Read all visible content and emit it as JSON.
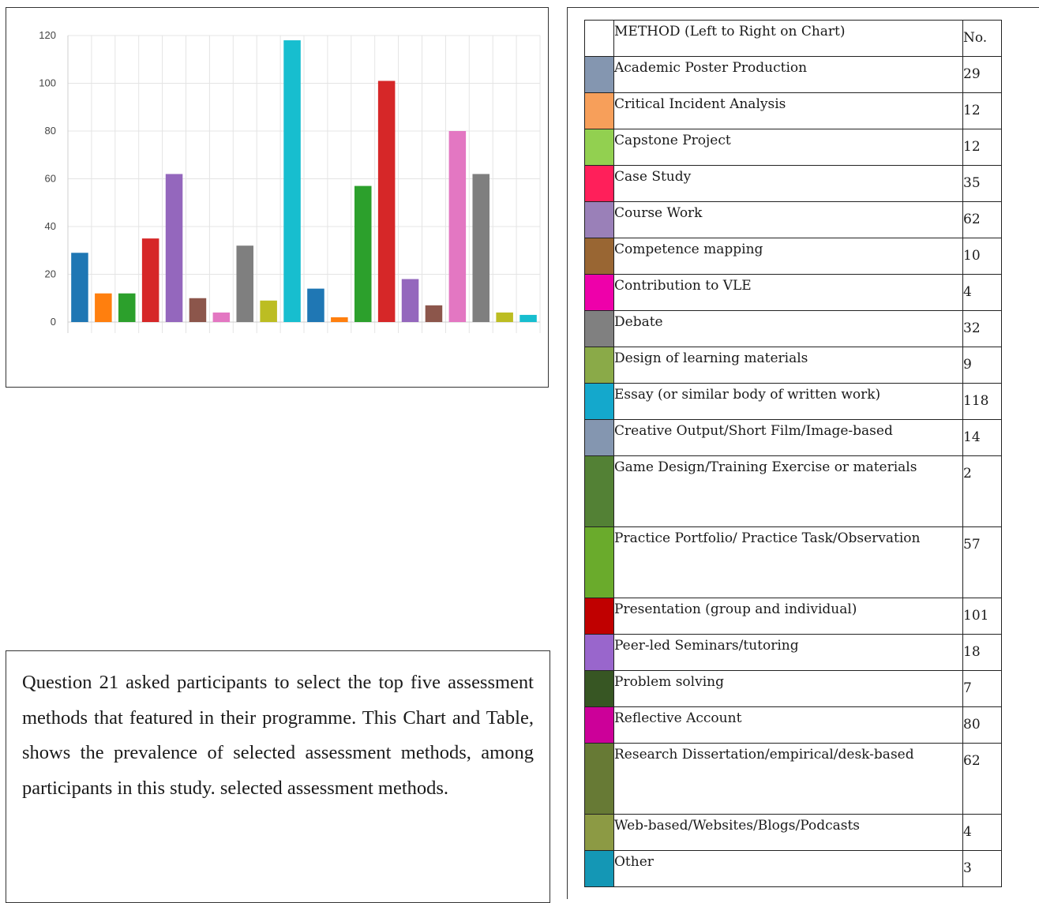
{
  "chart_data": {
    "type": "bar",
    "ylim": [
      0,
      120
    ],
    "yticks": [
      0,
      20,
      40,
      60,
      80,
      100,
      120
    ],
    "grid": true,
    "values": [
      29,
      12,
      12,
      35,
      62,
      10,
      4,
      32,
      9,
      118,
      14,
      2,
      57,
      101,
      18,
      7,
      80,
      62,
      4,
      3
    ],
    "colors": [
      "#1f77b4",
      "#ff7f0e",
      "#2ca02c",
      "#d62728",
      "#9467bd",
      "#8c564b",
      "#e377c2",
      "#7f7f7f",
      "#bcbd22",
      "#17becf",
      "#1f77b4",
      "#ff7f0e",
      "#2ca02c",
      "#d62728",
      "#9467bd",
      "#8c564b",
      "#e377c2",
      "#7f7f7f",
      "#bcbd22",
      "#17becf"
    ]
  },
  "table": {
    "header": {
      "method": "METHOD (Left to Right on Chart)",
      "count": "No."
    },
    "rows": [
      {
        "method": "Academic Poster Production",
        "count": "29",
        "color": "#8496b0",
        "lines": 1
      },
      {
        "method": "Critical Incident Analysis",
        "count": "12",
        "color": "#f79f5a",
        "lines": 1
      },
      {
        "method": "Capstone Project",
        "count": "12",
        "color": "#92d050",
        "lines": 1
      },
      {
        "method": "Case Study",
        "count": "35",
        "color": "#ff1f5a",
        "lines": 1
      },
      {
        "method": "Course Work",
        "count": "62",
        "color": "#9a80b8",
        "lines": 1
      },
      {
        "method": "Competence mapping",
        "count": "10",
        "color": "#996633",
        "lines": 1
      },
      {
        "method": "Contribution to VLE",
        "count": "4",
        "color": "#ee00aa",
        "lines": 1
      },
      {
        "method": "Debate",
        "count": "32",
        "color": "#808080",
        "lines": 1
      },
      {
        "method": "Design of learning materials",
        "count": "9",
        "color": "#8aaa48",
        "lines": 1
      },
      {
        "method": "Essay (or similar body of written work)",
        "count": "118",
        "color": "#14a8cc",
        "lines": 1
      },
      {
        "method": "Creative Output/Short Film/Image-based",
        "count": "14",
        "color": "#8496b0",
        "lines": 1
      },
      {
        "method": "Game Design/Training Exercise or materials",
        "count": "2",
        "color": "#538135",
        "lines": 2
      },
      {
        "method": "Practice Portfolio/ Practice Task/Observation",
        "count": "57",
        "color": "#6aab2c",
        "lines": 2
      },
      {
        "method": "Presentation (group and individual)",
        "count": "101",
        "color": "#c00000",
        "lines": 1
      },
      {
        "method": "Peer-led Seminars/tutoring",
        "count": "18",
        "color": "#9966cc",
        "lines": 1
      },
      {
        "method": "Problem solving",
        "count": "7",
        "color": "#375623",
        "lines": 1
      },
      {
        "method": "Reflective Account",
        "count": "80",
        "color": "#cc0099",
        "lines": 1
      },
      {
        "method": "Research Dissertation/empirical/desk-based",
        "count": "62",
        "color": "#677a35",
        "lines": 2
      },
      {
        "method": "Web-based/Websites/Blogs/Podcasts",
        "count": "4",
        "color": "#8c9a44",
        "lines": 1
      },
      {
        "method": "Other",
        "count": "3",
        "color": "#1497b5",
        "lines": 1
      }
    ]
  },
  "caption": "Question 21 asked participants to select the top five assessment methods that featured in their programme. This Chart and Table, shows the prevalence of selected assessment methods, among participants in this study. selected assessment methods."
}
